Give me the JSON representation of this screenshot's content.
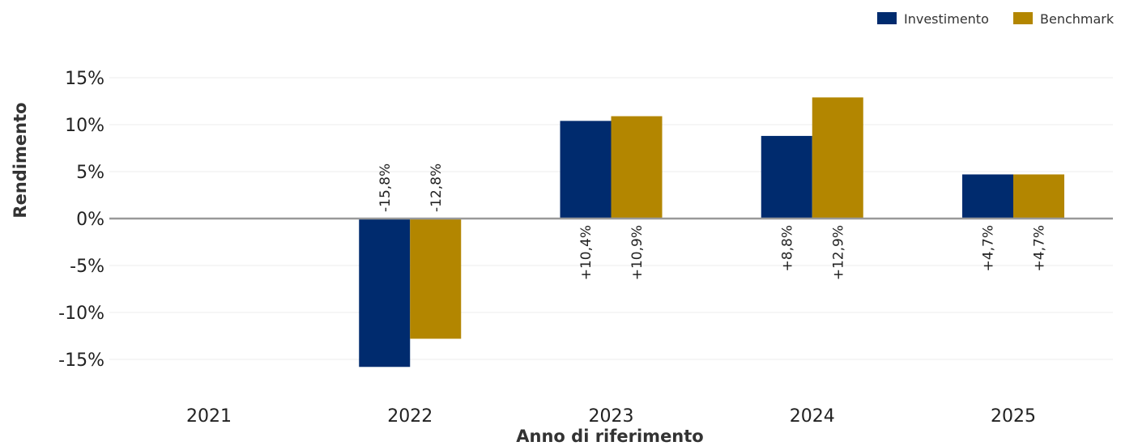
{
  "chart_data": {
    "type": "bar",
    "categories": [
      "2021",
      "2022",
      "2023",
      "2024",
      "2025"
    ],
    "series": [
      {
        "name": "Investimento",
        "color": "#002b6e",
        "values": [
          null,
          -15.8,
          10.4,
          8.8,
          4.7
        ],
        "labels": [
          "",
          "-15,8%",
          "+10,4%",
          "+8,8%",
          "+4,7%"
        ]
      },
      {
        "name": "Benchmark",
        "color": "#b38600",
        "values": [
          null,
          -12.8,
          10.9,
          12.9,
          4.7
        ],
        "labels": [
          "",
          "-12,8%",
          "+10,9%",
          "+12,9%",
          "+4,7%"
        ]
      }
    ],
    "xlabel": "Anno di riferimento",
    "ylabel": "Rendimento",
    "ylim": [
      -18,
      17
    ],
    "yticks": [
      15,
      10,
      5,
      0,
      -5,
      -10,
      -15
    ],
    "ytick_labels": [
      "15%",
      "10%",
      "5%",
      "0%",
      "-5%",
      "-10%",
      "-15%"
    ],
    "grid": true,
    "legend_position": "top-right"
  }
}
